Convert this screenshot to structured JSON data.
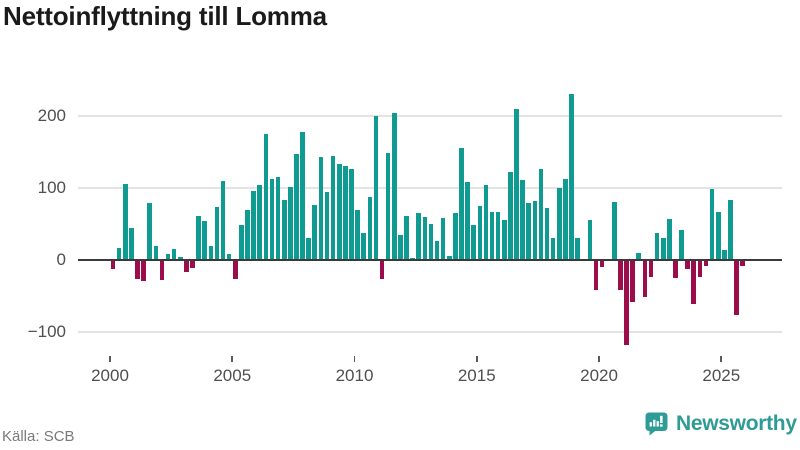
{
  "title": "Nettoinflyttning till Lomma",
  "source": "Källa: SCB",
  "branding": {
    "name": "Newsworthy",
    "color": "#2F9B95"
  },
  "chart_data": {
    "type": "bar",
    "title": "Nettoinflyttning till Lomma",
    "frequency": "quarterly",
    "start_period": "2000-Q1",
    "end_period": "2025-Q4",
    "values": [
      -12,
      16,
      105,
      45,
      -27,
      -29,
      79,
      20,
      -28,
      9,
      15,
      4,
      -17,
      -11,
      61,
      54,
      19,
      74,
      110,
      8,
      -27,
      49,
      70,
      96,
      104,
      175,
      112,
      115,
      84,
      101,
      147,
      178,
      30,
      76,
      143,
      95,
      144,
      133,
      130,
      126,
      70,
      38,
      87,
      200,
      -27,
      148,
      204,
      35,
      61,
      3,
      65,
      60,
      50,
      26,
      58,
      5,
      65,
      155,
      108,
      49,
      75,
      104,
      66,
      67,
      55,
      122,
      210,
      111,
      79,
      82,
      126,
      72,
      31,
      100,
      112,
      231,
      30,
      0,
      55,
      -42,
      -10,
      0,
      81,
      -41,
      -118,
      -58,
      10,
      -52,
      -23,
      38,
      30,
      57,
      -25,
      41,
      -12,
      -61,
      -23,
      -8,
      98,
      66,
      14,
      83,
      -76,
      -8
    ],
    "x_ticks": [
      {
        "label": "2000",
        "year": 2000
      },
      {
        "label": "2005",
        "year": 2005
      },
      {
        "label": "2010",
        "year": 2010
      },
      {
        "label": "2015",
        "year": 2015
      },
      {
        "label": "2020",
        "year": 2020
      },
      {
        "label": "2025",
        "year": 2025
      }
    ],
    "y_ticks": [
      {
        "label": "−100",
        "value": -100
      },
      {
        "label": "0",
        "value": 0
      },
      {
        "label": "100",
        "value": 100
      },
      {
        "label": "200",
        "value": 200
      }
    ],
    "ylim": [
      -140,
      245
    ],
    "grid": true,
    "legend": false,
    "positive_color": "#0F9B92",
    "negative_color": "#9B0E4B"
  }
}
